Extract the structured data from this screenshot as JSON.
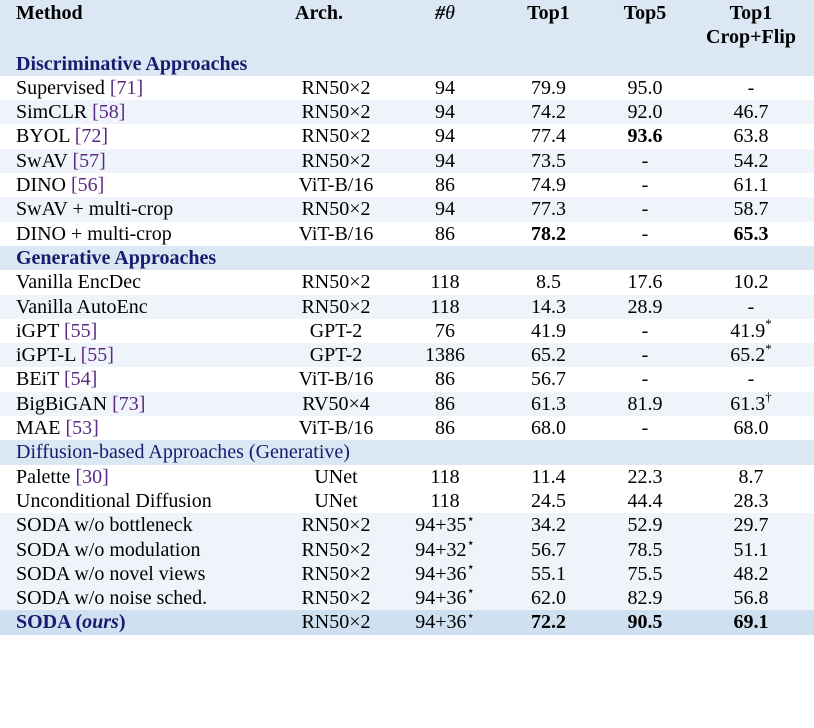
{
  "header": {
    "method": "Method",
    "arch": "Arch.",
    "params_hash": "#",
    "params_theta": "θ",
    "top1": "Top1",
    "top5": "Top5",
    "top1cf_line1": "Top1",
    "top1cf_line2": "Crop+Flip"
  },
  "sections": {
    "discriminative": "Discriminative Approaches",
    "generative": "Generative Approaches",
    "diffusion": "Diffusion-based Approaches (Generative)"
  },
  "rows": {
    "supervised": {
      "name": "Supervised ",
      "ref": "[71]",
      "arch": "RN50×2",
      "params": "94",
      "top1": "79.9",
      "top5": "95.0",
      "cf": "-"
    },
    "simclr": {
      "name": "SimCLR ",
      "ref": "[58]",
      "arch": "RN50×2",
      "params": "94",
      "top1": "74.2",
      "top5": "92.0",
      "cf": "46.7"
    },
    "byol": {
      "name": "BYOL ",
      "ref": "[72]",
      "arch": "RN50×2",
      "params": "94",
      "top1": "77.4",
      "top5": "93.6",
      "cf": "63.8"
    },
    "swav": {
      "name": "SwAV ",
      "ref": "[57]",
      "arch": "RN50×2",
      "params": "94",
      "top1": "73.5",
      "top5": "-",
      "cf": "54.2"
    },
    "dino": {
      "name": "DINO ",
      "ref": "[56]",
      "arch": "ViT-B/16",
      "params": "86",
      "top1": "74.9",
      "top5": "-",
      "cf": "61.1"
    },
    "swav_mc": {
      "name": "SwAV + multi-crop",
      "arch": "RN50×2",
      "params": "94",
      "top1": "77.3",
      "top5": "-",
      "cf": "58.7"
    },
    "dino_mc": {
      "name": "DINO + multi-crop",
      "arch": "ViT-B/16",
      "params": "86",
      "top1": "78.2",
      "top5": "-",
      "cf": "65.3"
    },
    "vanilla_encdec": {
      "name": "Vanilla EncDec",
      "arch": "RN50×2",
      "params": "118",
      "top1": "8.5",
      "top5": "17.6",
      "cf": "10.2"
    },
    "vanilla_autoenc": {
      "name": "Vanilla AutoEnc",
      "arch": "RN50×2",
      "params": "118",
      "top1": "14.3",
      "top5": "28.9",
      "cf": "-"
    },
    "igpt": {
      "name": "iGPT ",
      "ref": "[55]",
      "arch": "GPT-2",
      "params": "76",
      "top1": "41.9",
      "top5": "-",
      "cf": "41.9",
      "cf_sup": "*"
    },
    "igpt_l": {
      "name": "iGPT-L ",
      "ref": "[55]",
      "arch": "GPT-2",
      "params": "1386",
      "top1": "65.2",
      "top5": "-",
      "cf": "65.2",
      "cf_sup": "*"
    },
    "beit": {
      "name": "BEiT ",
      "ref": "[54]",
      "arch": "ViT-B/16",
      "params": "86",
      "top1": "56.7",
      "top5": "-",
      "cf": "-"
    },
    "bigbigan": {
      "name": "BigBiGAN ",
      "ref": "[73]",
      "arch": "RV50×4",
      "params": "86",
      "top1": "61.3",
      "top5": "81.9",
      "cf": "61.3",
      "cf_sup": "†"
    },
    "mae": {
      "name": "MAE ",
      "ref": "[53]",
      "arch": "ViT-B/16",
      "params": "86",
      "top1": "68.0",
      "top5": "-",
      "cf": "68.0"
    },
    "palette": {
      "name": "Palette ",
      "ref": "[30]",
      "arch": "UNet",
      "params": "118",
      "top1": "11.4",
      "top5": "22.3",
      "cf": "8.7"
    },
    "uncond": {
      "name": "Unconditional Diffusion",
      "arch": "UNet",
      "params": "118",
      "top1": "24.5",
      "top5": "44.4",
      "cf": "28.3"
    },
    "soda_bottle": {
      "name": "SODA w/o bottleneck",
      "arch": "RN50×2",
      "params": "94+35",
      "params_sup": "⋆",
      "top1": "34.2",
      "top5": "52.9",
      "cf": "29.7"
    },
    "soda_mod": {
      "name": "SODA w/o modulation",
      "arch": "RN50×2",
      "params": "94+32",
      "params_sup": "⋆",
      "top1": "56.7",
      "top5": "78.5",
      "cf": "51.1"
    },
    "soda_views": {
      "name": "SODA w/o novel views",
      "arch": "RN50×2",
      "params": "94+36",
      "params_sup": "⋆",
      "top1": "55.1",
      "top5": "75.5",
      "cf": "48.2"
    },
    "soda_noise": {
      "name": "SODA w/o noise sched.",
      "arch": "RN50×2",
      "params": "94+36",
      "params_sup": "⋆",
      "top1": "62.0",
      "top5": "82.9",
      "cf": "56.8"
    },
    "soda": {
      "name": "SODA",
      "name_open": " (",
      "name_ours": "ours",
      "name_close": ")",
      "arch": "RN50×2",
      "params": "94+36",
      "params_sup": "⋆",
      "top1": "72.2",
      "top5": "90.5",
      "cf": "69.1"
    }
  }
}
